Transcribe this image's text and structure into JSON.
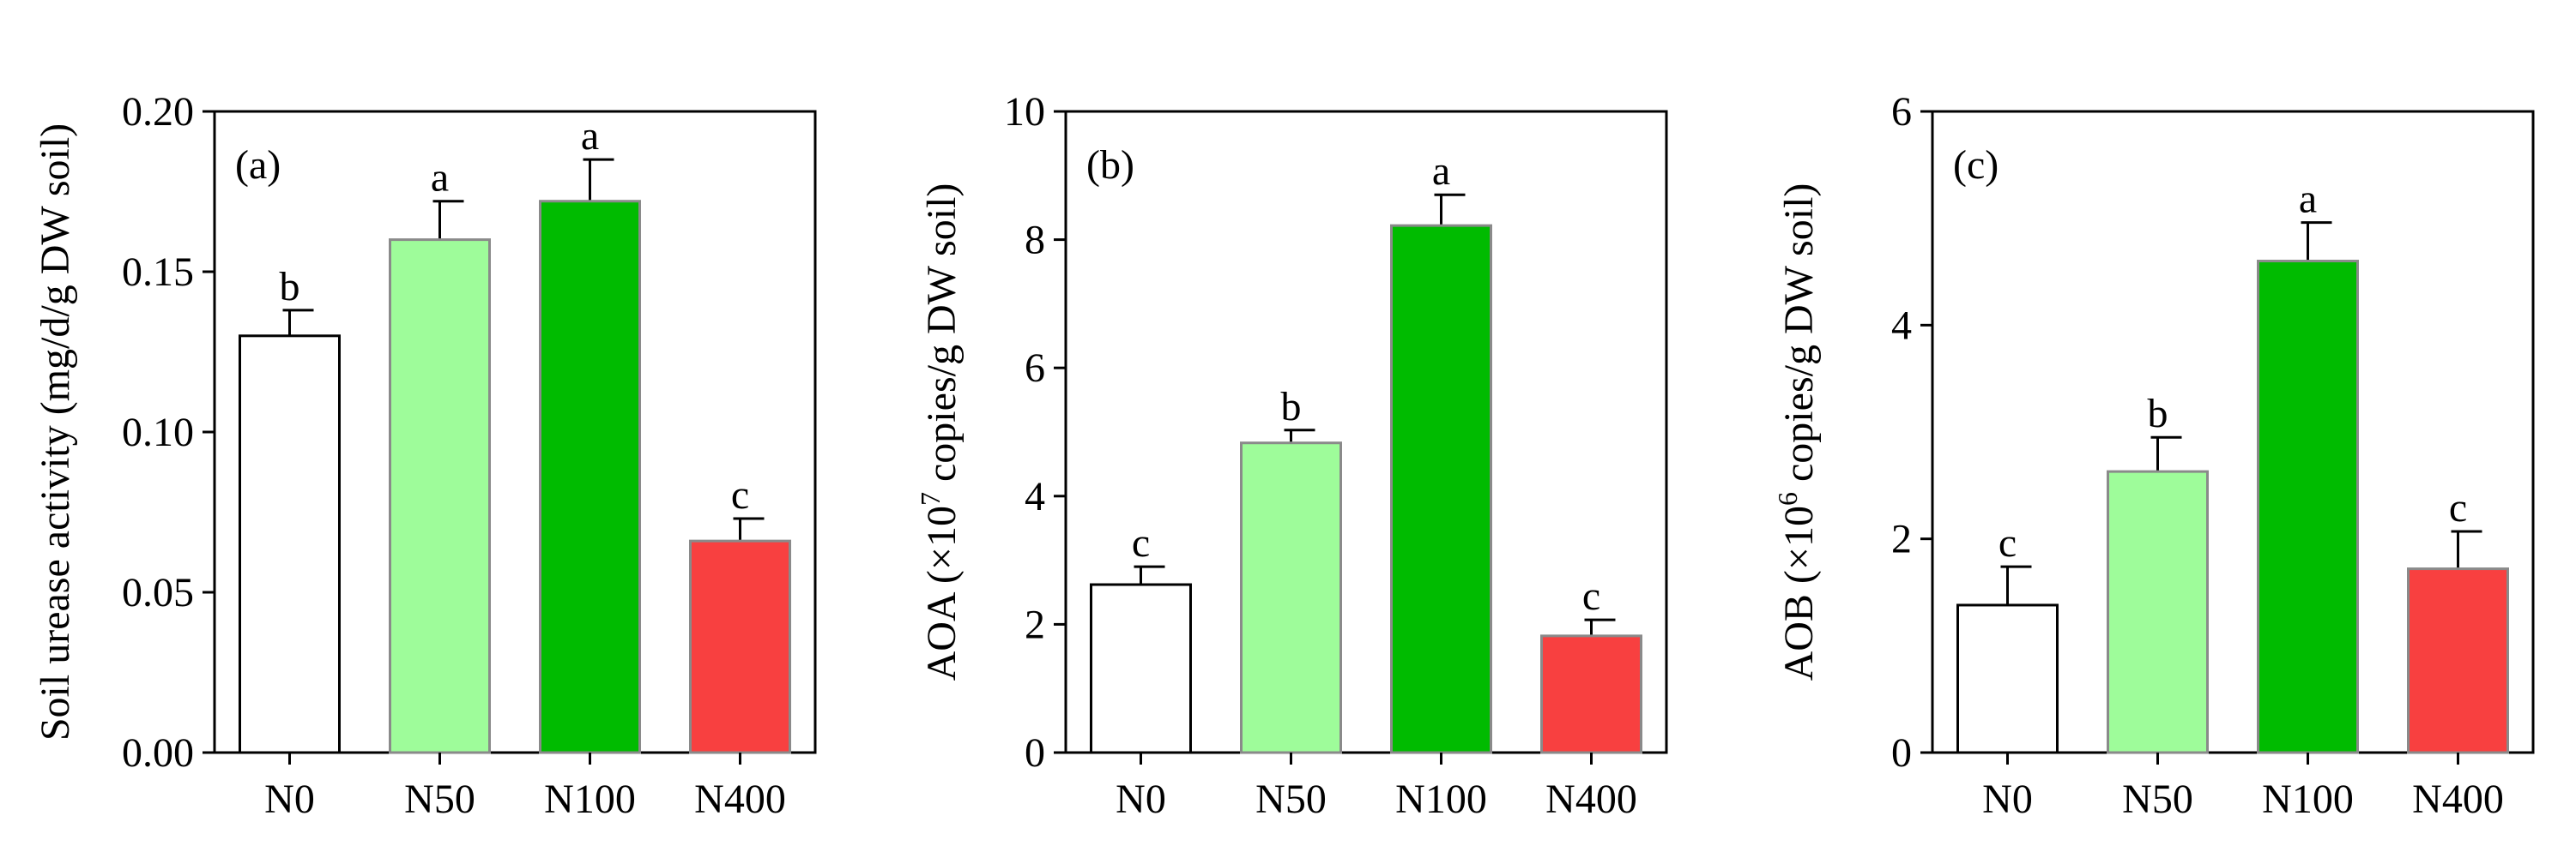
{
  "chart_data": [
    {
      "type": "bar",
      "panel_label": "(a)",
      "ylabel": "Soil urease activity (mg/d/g DW soil)",
      "categories": [
        "N0",
        "N50",
        "N100",
        "N400"
      ],
      "values": [
        0.13,
        0.16,
        0.172,
        0.066
      ],
      "errors": [
        0.008,
        0.012,
        0.013,
        0.007
      ],
      "letters": [
        "b",
        "a",
        "a",
        "c"
      ],
      "ylim": [
        0,
        0.2
      ],
      "yticks": [
        0.0,
        0.05,
        0.1,
        0.15,
        0.2
      ],
      "ytick_labels": [
        "0.00",
        "0.05",
        "0.10",
        "0.15",
        "0.20"
      ],
      "colors": [
        "#ffffff",
        "#9efc9a",
        "#00bb00",
        "#f84040"
      ]
    },
    {
      "type": "bar",
      "panel_label": "(b)",
      "ylabel": {
        "pre": "AOA (×10",
        "sup": "7",
        "post": " copies/g DW soil)"
      },
      "categories": [
        "N0",
        "N50",
        "N100",
        "N400"
      ],
      "values": [
        2.62,
        4.83,
        8.22,
        1.82
      ],
      "errors": [
        0.28,
        0.2,
        0.48,
        0.25
      ],
      "letters": [
        "c",
        "b",
        "a",
        "c"
      ],
      "ylim": [
        0,
        10
      ],
      "yticks": [
        0,
        2,
        4,
        6,
        8,
        10
      ],
      "ytick_labels": [
        "0",
        "2",
        "4",
        "6",
        "8",
        "10"
      ],
      "colors": [
        "#ffffff",
        "#9efc9a",
        "#00bb00",
        "#f84040"
      ]
    },
    {
      "type": "bar",
      "panel_label": "(c)",
      "ylabel": {
        "pre": "AOB (×10",
        "sup": "6",
        "post": " copies/g DW soil)"
      },
      "categories": [
        "N0",
        "N50",
        "N100",
        "N400"
      ],
      "values": [
        1.38,
        2.63,
        4.6,
        1.72
      ],
      "errors": [
        0.36,
        0.32,
        0.36,
        0.35
      ],
      "letters": [
        "c",
        "b",
        "a",
        "c"
      ],
      "ylim": [
        0,
        6
      ],
      "yticks": [
        0,
        2,
        4,
        6
      ],
      "ytick_labels": [
        "0",
        "2",
        "4",
        "6"
      ],
      "colors": [
        "#ffffff",
        "#9efc9a",
        "#00bb00",
        "#f84040"
      ]
    }
  ]
}
